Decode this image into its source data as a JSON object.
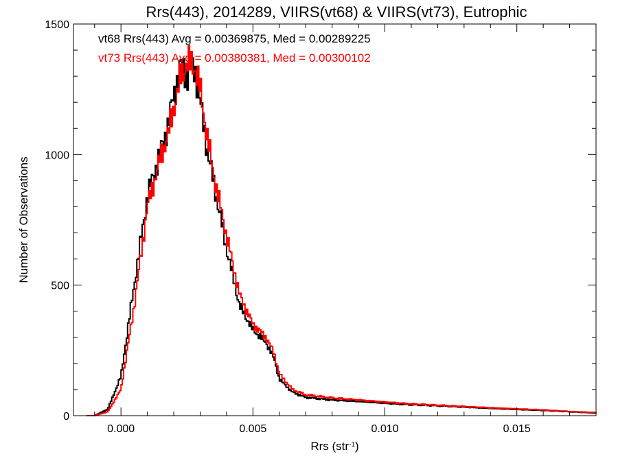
{
  "chart_data": {
    "type": "line",
    "title": "Rrs(443), 2014289, VIIRS(vt68) & VIIRS(vt73), Eutrophic",
    "xlabel": "Rrs (str",
    "xlabel_sup": "-1",
    "xlabel_close": ")",
    "ylabel": "Number of Observations",
    "xlim": [
      -0.0018,
      0.018
    ],
    "ylim": [
      0,
      1500
    ],
    "xticks": [
      0.0,
      0.005,
      0.01,
      0.015
    ],
    "xtick_labels": [
      "0.000",
      "0.005",
      "0.010",
      "0.015"
    ],
    "yticks": [
      0,
      500,
      1000,
      1500
    ],
    "ytick_labels": [
      "0",
      "500",
      "1000",
      "1500"
    ],
    "grid": false,
    "annotations": [
      {
        "text": "vt68 Rrs(443) Avg = 0.00369875, Med = 0.00289225",
        "color": "#000000"
      },
      {
        "text": "vt73 Rrs(443) Avg = 0.00380381, Med = 0.00300102",
        "color": "#ff0000"
      }
    ],
    "series": [
      {
        "color": "#000000",
        "x": [
          -0.001,
          -0.0005,
          0.0,
          0.0005,
          0.001,
          0.0015,
          0.0018,
          0.002,
          0.0023,
          0.0025,
          0.0028,
          0.003,
          0.0033,
          0.0035,
          0.004,
          0.0045,
          0.005,
          0.0055,
          0.0058,
          0.006,
          0.0065,
          0.007,
          0.008,
          0.009,
          0.01,
          0.011,
          0.012,
          0.013,
          0.014,
          0.015,
          0.016,
          0.017,
          0.018
        ],
        "y": [
          0,
          25,
          150,
          500,
          840,
          1010,
          1120,
          1230,
          1350,
          1300,
          1330,
          1200,
          1000,
          900,
          640,
          420,
          330,
          280,
          220,
          140,
          90,
          70,
          60,
          55,
          48,
          42,
          38,
          33,
          28,
          24,
          20,
          15,
          10
        ]
      },
      {
        "color": "#ff0000",
        "x": [
          -0.001,
          -0.0005,
          0.0,
          0.0005,
          0.001,
          0.0015,
          0.0018,
          0.002,
          0.0023,
          0.0025,
          0.0028,
          0.003,
          0.0033,
          0.0035,
          0.004,
          0.0045,
          0.005,
          0.0055,
          0.0058,
          0.006,
          0.0065,
          0.007,
          0.008,
          0.009,
          0.01,
          0.011,
          0.012,
          0.013,
          0.014,
          0.015,
          0.016,
          0.017,
          0.018
        ],
        "y": [
          0,
          15,
          100,
          420,
          800,
          990,
          1080,
          1180,
          1310,
          1350,
          1340,
          1250,
          1050,
          930,
          690,
          460,
          350,
          300,
          240,
          160,
          100,
          80,
          68,
          60,
          52,
          45,
          40,
          35,
          30,
          26,
          22,
          16,
          12
        ]
      }
    ]
  }
}
